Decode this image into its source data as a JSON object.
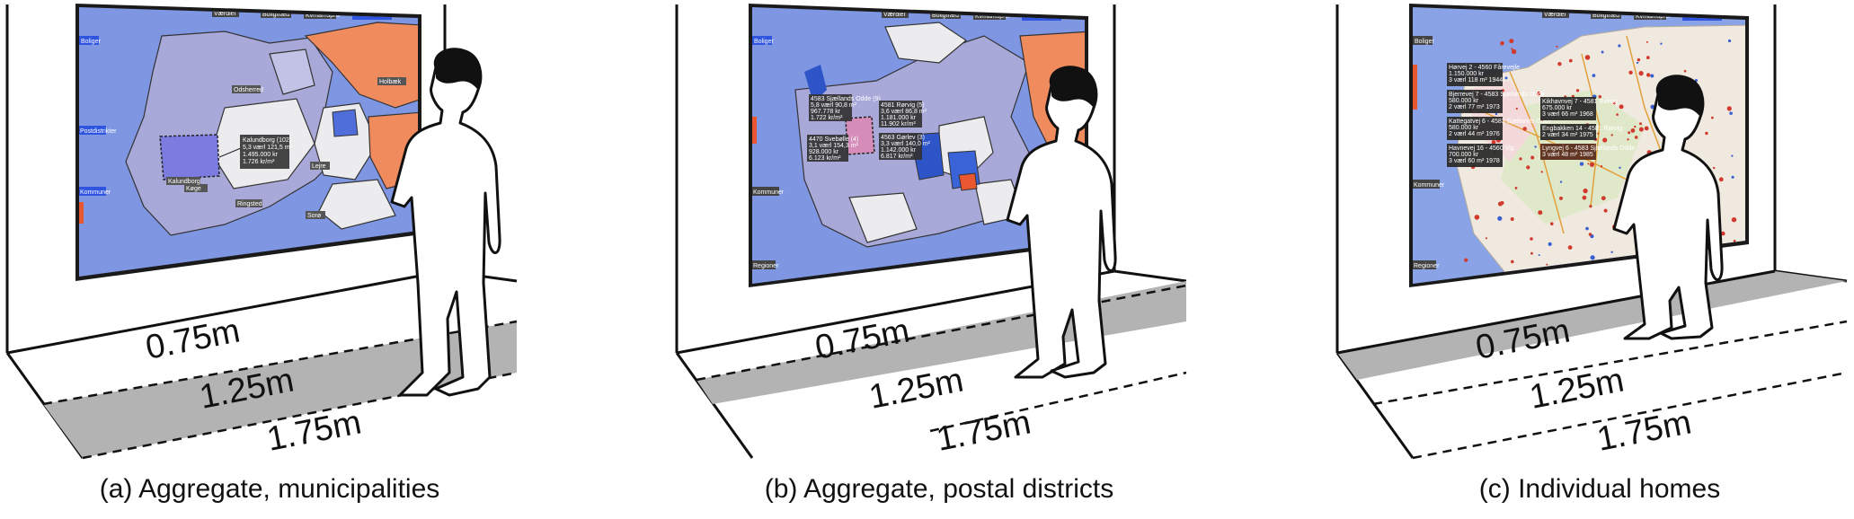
{
  "panels": [
    {
      "caption": "(a) Aggregate, municipalities",
      "distances": [
        "0.75m",
        "1.25m",
        "1.75m"
      ],
      "highlighted_zone": "1.75m",
      "map": {
        "tabs": [
          "Værdier",
          "Boligtræd",
          "Kvmamsprix"
        ],
        "side_buttons": [
          "Boliger",
          "Postdistrikter",
          "Kommuner"
        ],
        "regions": [
          "Odsherred",
          "Holbæk",
          "Lejre",
          "Sorø",
          "Ringsted",
          "Køge",
          "Næstved",
          "Stevns",
          "Faxe",
          "Hillerød",
          "Egedal",
          "Roskilde",
          "Kalundborg"
        ],
        "tooltip": [
          "Kalundborg (102)",
          "5,3 værl 121,5 m²",
          "1.495.000 kr",
          "1.726 kr/m²"
        ]
      }
    },
    {
      "caption": "(b) Aggregate, postal districts",
      "distances": [
        "0.75m",
        "1.25m",
        "1.75m"
      ],
      "highlighted_zone": "1.25m",
      "map": {
        "tabs": [
          "Værdier",
          "Boligtræd",
          "Kvmamsprix"
        ],
        "side_buttons": [
          "Boliger",
          "Kommuner",
          "Regioner"
        ],
        "tooltips": [
          [
            "4583 Sjællands Odde (9)",
            "5,8 værl 90,8 m²",
            "967.778 kr",
            "1.722 kr/m²"
          ],
          [
            "4470 Svebølle (4)",
            "3,1 værl 154,3 m²",
            "928.000 kr",
            "6.123 kr/m²"
          ],
          [
            "4581 Rørvig (5)",
            "3,6 værl 86,8 m²",
            "1.181.000 kr",
            "11.902 kr/m²"
          ],
          [
            "4563 Gørlev (3)",
            "3,3 værl 140,0 m²",
            "1.142.000 kr",
            "6.817 kr/m²"
          ]
        ]
      }
    },
    {
      "caption": "(c) Individual homes",
      "distances": [
        "0.75m",
        "1.25m",
        "1.75m"
      ],
      "highlighted_zone": "0.75m",
      "map": {
        "tabs": [
          "Værdier",
          "Boligtræd",
          "Kvmamsprix"
        ],
        "side_buttons": [
          "Boliger",
          "Kommuner",
          "Regioner"
        ],
        "tooltips": [
          [
            "Hørvej 2 - 4560 Fårevejle",
            "1.150.000 kr",
            "3 værl 118 m² 1944"
          ],
          [
            "Bjerrevej 7 - 4583 Sjællands Odde",
            "580.000 kr",
            "2 værl 77 m² 1973"
          ],
          [
            "Kattegatvej 6 - 4583 Sjællands Odde",
            "580.000 kr",
            "2 værl 44 m² 1976"
          ],
          [
            "Havnevej 16 - 4560 Vig",
            "700.000 kr",
            "3 værl 60 m² 1978"
          ],
          [
            "Kikhavnvej 7 - 4581 Rørvig",
            "675.000 kr",
            "3 værl 66 m² 1968"
          ],
          [
            "Engbakken 14 - 4581 Rørvig",
            "2 værl 34 m² 1975"
          ],
          [
            "Lyngvej 6 - 4583 Sjællands Odde",
            "3 værl 48 m² 1985"
          ]
        ]
      }
    }
  ]
}
